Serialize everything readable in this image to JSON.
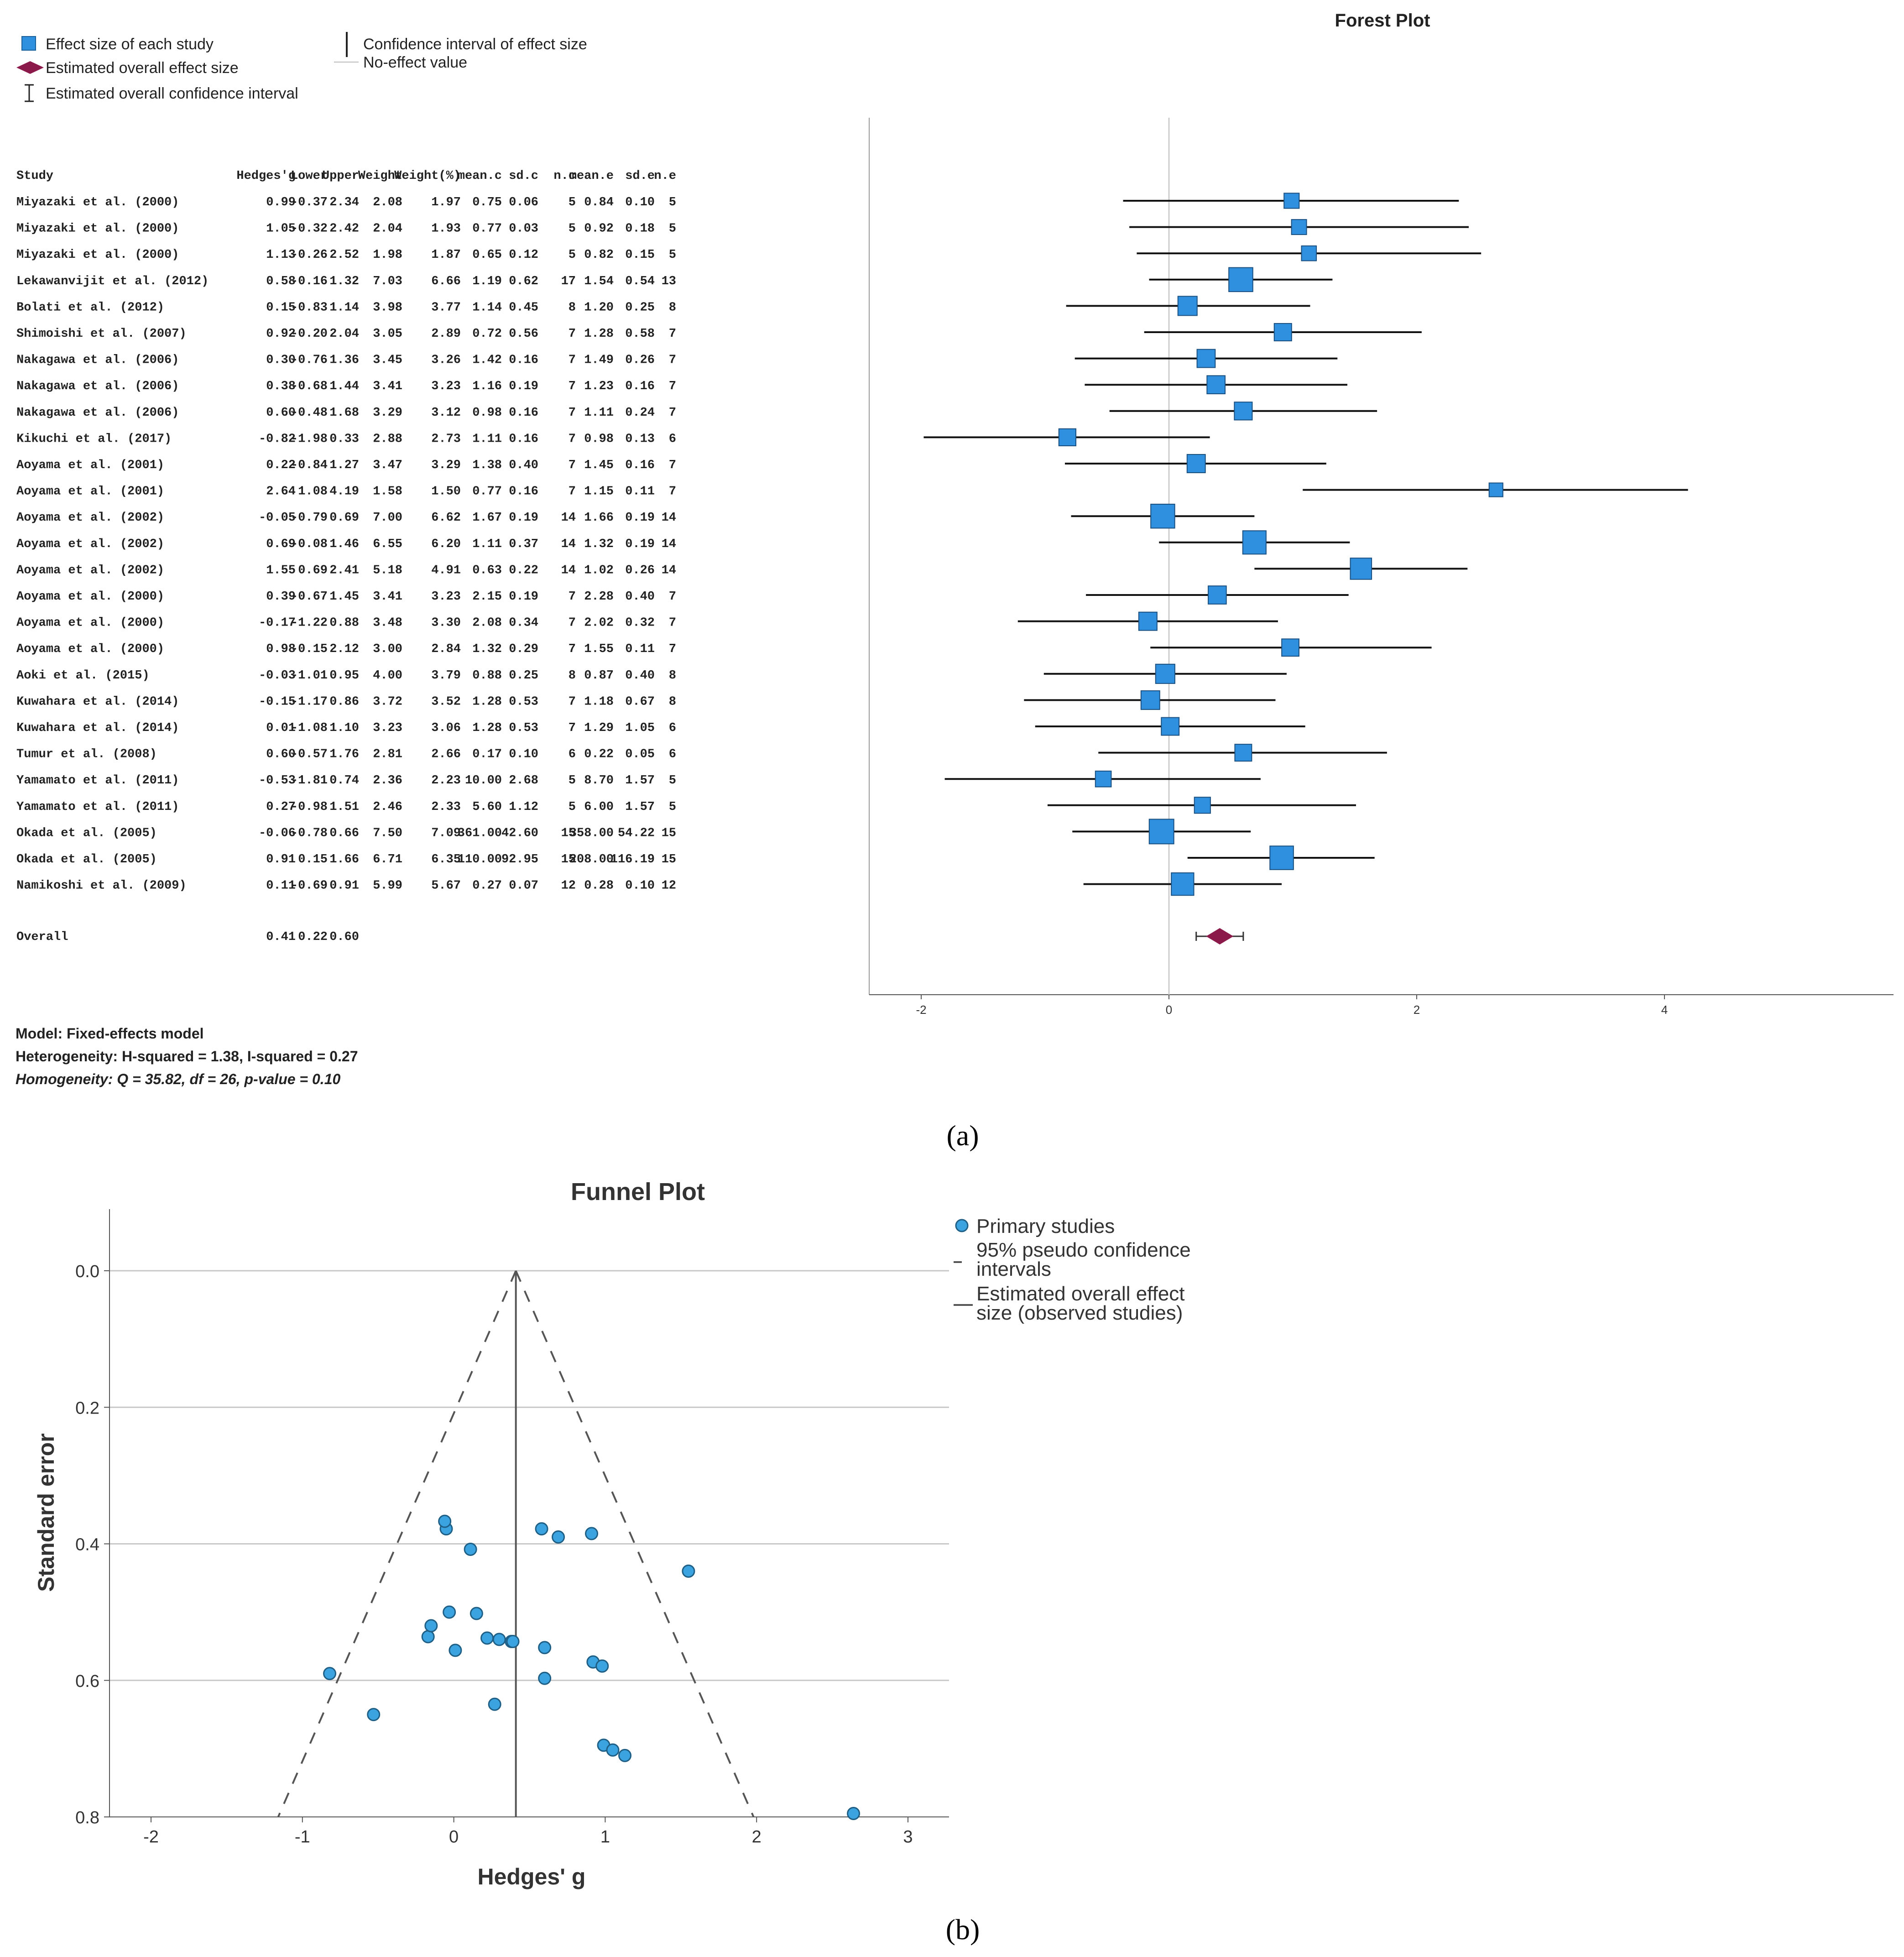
{
  "panel_a": {
    "label": "(a)",
    "legend": {
      "effect_size": "Effect size of each study",
      "overall_effect": "Estimated overall effect size",
      "overall_ci": "Estimated overall confidence interval",
      "ci": "Confidence interval of effect size",
      "no_effect": "No-effect value"
    },
    "table": {
      "headers": [
        "Study",
        "Hedges'g",
        "Lower",
        "Upper",
        "Weight",
        "Weight(%)",
        "mean.c",
        "sd.c",
        "n.c",
        "mean.e",
        "sd.e",
        "n.e"
      ],
      "rows": [
        [
          "Miyazaki et al. (2000)",
          "0.99",
          "-0.37",
          "2.34",
          "2.08",
          "1.97",
          "0.75",
          "0.06",
          "5",
          "0.84",
          "0.10",
          "5"
        ],
        [
          "Miyazaki et al. (2000)",
          "1.05",
          "-0.32",
          "2.42",
          "2.04",
          "1.93",
          "0.77",
          "0.03",
          "5",
          "0.92",
          "0.18",
          "5"
        ],
        [
          "Miyazaki et al. (2000)",
          "1.13",
          "-0.26",
          "2.52",
          "1.98",
          "1.87",
          "0.65",
          "0.12",
          "5",
          "0.82",
          "0.15",
          "5"
        ],
        [
          "Lekawanvijit et al. (2012)",
          "0.58",
          "-0.16",
          "1.32",
          "7.03",
          "6.66",
          "1.19",
          "0.62",
          "17",
          "1.54",
          "0.54",
          "13"
        ],
        [
          "Bolati et al. (2012)",
          "0.15",
          "-0.83",
          "1.14",
          "3.98",
          "3.77",
          "1.14",
          "0.45",
          "8",
          "1.20",
          "0.25",
          "8"
        ],
        [
          "Shimoishi et al. (2007)",
          "0.92",
          "-0.20",
          "2.04",
          "3.05",
          "2.89",
          "0.72",
          "0.56",
          "7",
          "1.28",
          "0.58",
          "7"
        ],
        [
          "Nakagawa et al. (2006)",
          "0.30",
          "-0.76",
          "1.36",
          "3.45",
          "3.26",
          "1.42",
          "0.16",
          "7",
          "1.49",
          "0.26",
          "7"
        ],
        [
          "Nakagawa et al. (2006)",
          "0.38",
          "-0.68",
          "1.44",
          "3.41",
          "3.23",
          "1.16",
          "0.19",
          "7",
          "1.23",
          "0.16",
          "7"
        ],
        [
          "Nakagawa et al. (2006)",
          "0.60",
          "-0.48",
          "1.68",
          "3.29",
          "3.12",
          "0.98",
          "0.16",
          "7",
          "1.11",
          "0.24",
          "7"
        ],
        [
          "Kikuchi et al. (2017)",
          "-0.82",
          "-1.98",
          "0.33",
          "2.88",
          "2.73",
          "1.11",
          "0.16",
          "7",
          "0.98",
          "0.13",
          "6"
        ],
        [
          "Aoyama et al. (2001)",
          "0.22",
          "-0.84",
          "1.27",
          "3.47",
          "3.29",
          "1.38",
          "0.40",
          "7",
          "1.45",
          "0.16",
          "7"
        ],
        [
          "Aoyama et al. (2001)",
          "2.64",
          "1.08",
          "4.19",
          "1.58",
          "1.50",
          "0.77",
          "0.16",
          "7",
          "1.15",
          "0.11",
          "7"
        ],
        [
          "Aoyama et al. (2002)",
          "-0.05",
          "-0.79",
          "0.69",
          "7.00",
          "6.62",
          "1.67",
          "0.19",
          "14",
          "1.66",
          "0.19",
          "14"
        ],
        [
          "Aoyama et al. (2002)",
          "0.69",
          "-0.08",
          "1.46",
          "6.55",
          "6.20",
          "1.11",
          "0.37",
          "14",
          "1.32",
          "0.19",
          "14"
        ],
        [
          "Aoyama et al. (2002)",
          "1.55",
          "0.69",
          "2.41",
          "5.18",
          "4.91",
          "0.63",
          "0.22",
          "14",
          "1.02",
          "0.26",
          "14"
        ],
        [
          "Aoyama et al. (2000)",
          "0.39",
          "-0.67",
          "1.45",
          "3.41",
          "3.23",
          "2.15",
          "0.19",
          "7",
          "2.28",
          "0.40",
          "7"
        ],
        [
          "Aoyama et al. (2000)",
          "-0.17",
          "-1.22",
          "0.88",
          "3.48",
          "3.30",
          "2.08",
          "0.34",
          "7",
          "2.02",
          "0.32",
          "7"
        ],
        [
          "Aoyama et al. (2000)",
          "0.98",
          "-0.15",
          "2.12",
          "3.00",
          "2.84",
          "1.32",
          "0.29",
          "7",
          "1.55",
          "0.11",
          "7"
        ],
        [
          "Aoki et al. (2015)",
          "-0.03",
          "-1.01",
          "0.95",
          "4.00",
          "3.79",
          "0.88",
          "0.25",
          "8",
          "0.87",
          "0.40",
          "8"
        ],
        [
          "Kuwahara et al. (2014)",
          "-0.15",
          "-1.17",
          "0.86",
          "3.72",
          "3.52",
          "1.28",
          "0.53",
          "7",
          "1.18",
          "0.67",
          "8"
        ],
        [
          "Kuwahara et al. (2014)",
          "0.01",
          "-1.08",
          "1.10",
          "3.23",
          "3.06",
          "1.28",
          "0.53",
          "7",
          "1.29",
          "1.05",
          "6"
        ],
        [
          "Tumur et al. (2008)",
          "0.60",
          "-0.57",
          "1.76",
          "2.81",
          "2.66",
          "0.17",
          "0.10",
          "6",
          "0.22",
          "0.05",
          "6"
        ],
        [
          "Yamamato et al. (2011)",
          "-0.53",
          "-1.81",
          "0.74",
          "2.36",
          "2.23",
          "10.00",
          "2.68",
          "5",
          "8.70",
          "1.57",
          "5"
        ],
        [
          "Yamamato et al. (2011)",
          "0.27",
          "-0.98",
          "1.51",
          "2.46",
          "2.33",
          "5.60",
          "1.12",
          "5",
          "6.00",
          "1.57",
          "5"
        ],
        [
          "Okada et al. (2005)",
          "-0.06",
          "-0.78",
          "0.66",
          "7.50",
          "7.09",
          "361.00",
          "42.60",
          "15",
          "358.00",
          "54.22",
          "15"
        ],
        [
          "Okada et al. (2005)",
          "0.91",
          "0.15",
          "1.66",
          "6.71",
          "6.35",
          "110.00",
          "92.95",
          "15",
          "208.00",
          "116.19",
          "15"
        ],
        [
          "Namikoshi et al. (2009)",
          "0.11",
          "-0.69",
          "0.91",
          "5.99",
          "5.67",
          "0.27",
          "0.07",
          "12",
          "0.28",
          "0.10",
          "12"
        ]
      ],
      "overall": [
        "Overall",
        "0.41",
        "0.22",
        "0.60"
      ]
    },
    "model": "Model: Fixed-effects model",
    "heterogeneity": "Heterogeneity: H-squared = 1.38, I-squared = 0.27",
    "homogeneity": "Homogeneity: Q = 35.82, df = 26, p-value = 0.10"
  },
  "panel_b": {
    "label": "(b)",
    "legend": {
      "points": "Primary studies",
      "ci_line1": "95% pseudo confidence",
      "ci_line2": "intervals",
      "overall_line1": "Estimated overall effect",
      "overall_line2": "size (observed studies)"
    }
  },
  "chart_data": [
    {
      "type": "forest",
      "title": "Forest Plot",
      "x_ticks": [
        "-2",
        "0",
        "2",
        "4"
      ],
      "xlim": [
        -2,
        5.8
      ],
      "no_effect_value": 0,
      "studies": [
        {
          "g": 0.99,
          "lower": -0.37,
          "upper": 2.34,
          "weight_pct": 1.97
        },
        {
          "g": 1.05,
          "lower": -0.32,
          "upper": 2.42,
          "weight_pct": 1.93
        },
        {
          "g": 1.13,
          "lower": -0.26,
          "upper": 2.52,
          "weight_pct": 1.87
        },
        {
          "g": 0.58,
          "lower": -0.16,
          "upper": 1.32,
          "weight_pct": 6.66
        },
        {
          "g": 0.15,
          "lower": -0.83,
          "upper": 1.14,
          "weight_pct": 3.77
        },
        {
          "g": 0.92,
          "lower": -0.2,
          "upper": 2.04,
          "weight_pct": 2.89
        },
        {
          "g": 0.3,
          "lower": -0.76,
          "upper": 1.36,
          "weight_pct": 3.26
        },
        {
          "g": 0.38,
          "lower": -0.68,
          "upper": 1.44,
          "weight_pct": 3.23
        },
        {
          "g": 0.6,
          "lower": -0.48,
          "upper": 1.68,
          "weight_pct": 3.12
        },
        {
          "g": -0.82,
          "lower": -1.98,
          "upper": 0.33,
          "weight_pct": 2.73
        },
        {
          "g": 0.22,
          "lower": -0.84,
          "upper": 1.27,
          "weight_pct": 3.29
        },
        {
          "g": 2.64,
          "lower": 1.08,
          "upper": 4.19,
          "weight_pct": 1.5
        },
        {
          "g": -0.05,
          "lower": -0.79,
          "upper": 0.69,
          "weight_pct": 6.62
        },
        {
          "g": 0.69,
          "lower": -0.08,
          "upper": 1.46,
          "weight_pct": 6.2
        },
        {
          "g": 1.55,
          "lower": 0.69,
          "upper": 2.41,
          "weight_pct": 4.91
        },
        {
          "g": 0.39,
          "lower": -0.67,
          "upper": 1.45,
          "weight_pct": 3.23
        },
        {
          "g": -0.17,
          "lower": -1.22,
          "upper": 0.88,
          "weight_pct": 3.3
        },
        {
          "g": 0.98,
          "lower": -0.15,
          "upper": 2.12,
          "weight_pct": 2.84
        },
        {
          "g": -0.03,
          "lower": -1.01,
          "upper": 0.95,
          "weight_pct": 3.79
        },
        {
          "g": -0.15,
          "lower": -1.17,
          "upper": 0.86,
          "weight_pct": 3.52
        },
        {
          "g": 0.01,
          "lower": -1.08,
          "upper": 1.1,
          "weight_pct": 3.06
        },
        {
          "g": 0.6,
          "lower": -0.57,
          "upper": 1.76,
          "weight_pct": 2.66
        },
        {
          "g": -0.53,
          "lower": -1.81,
          "upper": 0.74,
          "weight_pct": 2.23
        },
        {
          "g": 0.27,
          "lower": -0.98,
          "upper": 1.51,
          "weight_pct": 2.33
        },
        {
          "g": -0.06,
          "lower": -0.78,
          "upper": 0.66,
          "weight_pct": 7.09
        },
        {
          "g": 0.91,
          "lower": 0.15,
          "upper": 1.66,
          "weight_pct": 6.35
        },
        {
          "g": 0.11,
          "lower": -0.69,
          "upper": 0.91,
          "weight_pct": 5.67
        }
      ],
      "overall": {
        "g": 0.41,
        "lower": 0.22,
        "upper": 0.6
      },
      "colors": {
        "square": "#2e90de",
        "diamond": "#8b1a4a"
      }
    },
    {
      "type": "scatter",
      "title": "Funnel Plot",
      "xlabel": "Hedges' g",
      "ylabel": "Standard error",
      "xlim": [
        -2.3,
        3.3
      ],
      "ylim": [
        0.8,
        -0.09
      ],
      "x_ticks": [
        "-2",
        "-1",
        "0",
        "1",
        "2",
        "3"
      ],
      "y_ticks": [
        "0.0",
        "0.2",
        "0.4",
        "0.6",
        "0.8"
      ],
      "y_inverted": true,
      "grid": "horizontal",
      "legend_position": "right",
      "overall_effect": 0.41,
      "pseudo_ci_apex": {
        "x": 0.41,
        "se": 0
      },
      "pseudo_ci_base": {
        "lower": -1.16,
        "upper": 1.98,
        "se": 0.8
      },
      "points": [
        {
          "x": 0.99,
          "y": 0.695
        },
        {
          "x": 1.05,
          "y": 0.702
        },
        {
          "x": 1.13,
          "y": 0.71
        },
        {
          "x": 0.58,
          "y": 0.378
        },
        {
          "x": 0.15,
          "y": 0.502
        },
        {
          "x": 0.92,
          "y": 0.573
        },
        {
          "x": 0.3,
          "y": 0.54
        },
        {
          "x": 0.38,
          "y": 0.543
        },
        {
          "x": 0.6,
          "y": 0.552
        },
        {
          "x": -0.82,
          "y": 0.59
        },
        {
          "x": 0.22,
          "y": 0.538
        },
        {
          "x": 2.64,
          "y": 0.795
        },
        {
          "x": -0.05,
          "y": 0.378
        },
        {
          "x": 0.69,
          "y": 0.39
        },
        {
          "x": 1.55,
          "y": 0.44
        },
        {
          "x": 0.39,
          "y": 0.543
        },
        {
          "x": -0.17,
          "y": 0.536
        },
        {
          "x": 0.98,
          "y": 0.579
        },
        {
          "x": -0.03,
          "y": 0.5
        },
        {
          "x": -0.15,
          "y": 0.52
        },
        {
          "x": 0.01,
          "y": 0.556
        },
        {
          "x": 0.6,
          "y": 0.597
        },
        {
          "x": -0.53,
          "y": 0.65
        },
        {
          "x": 0.27,
          "y": 0.635
        },
        {
          "x": -0.06,
          "y": 0.367
        },
        {
          "x": 0.91,
          "y": 0.385
        },
        {
          "x": 0.11,
          "y": 0.408
        }
      ],
      "colors": {
        "point": "#3ba3e0",
        "line": "#555555"
      }
    }
  ]
}
